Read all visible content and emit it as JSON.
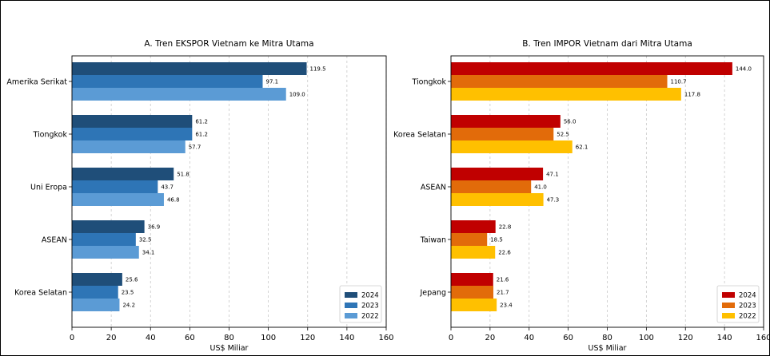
{
  "chart_data": [
    {
      "type": "bar",
      "orientation": "horizontal",
      "title": "A. Tren EKSPOR Vietnam ke Mitra Utama",
      "xlabel": "US$ Miliar",
      "xlim": [
        0,
        160
      ],
      "xticks": [
        "0",
        "20",
        "40",
        "60",
        "80",
        "100",
        "120",
        "140",
        "160"
      ],
      "categories": [
        "Amerika Serikat",
        "Tiongkok",
        "Uni Eropa",
        "ASEAN",
        "Korea Selatan"
      ],
      "series": [
        {
          "name": "2024",
          "color": "#1f4e79",
          "values": [
            119.5,
            61.2,
            51.8,
            36.9,
            25.6
          ]
        },
        {
          "name": "2023",
          "color": "#2e75b6",
          "values": [
            97.1,
            61.2,
            43.7,
            32.5,
            23.5
          ]
        },
        {
          "name": "2022",
          "color": "#5b9bd5",
          "values": [
            109.0,
            57.7,
            46.8,
            34.1,
            24.2
          ]
        }
      ],
      "grid": "vertical",
      "legend_position": "bottom-right"
    },
    {
      "type": "bar",
      "orientation": "horizontal",
      "title": "B. Tren IMPOR Vietnam dari Mitra Utama",
      "xlabel": "US$ Miliar",
      "xlim": [
        0,
        160
      ],
      "xticks": [
        "0",
        "20",
        "40",
        "60",
        "80",
        "100",
        "120",
        "140",
        "160"
      ],
      "categories": [
        "Tiongkok",
        "Korea Selatan",
        "ASEAN",
        "Taiwan",
        "Jepang"
      ],
      "series": [
        {
          "name": "2024",
          "color": "#c00000",
          "values": [
            144.0,
            56.0,
            47.1,
            22.8,
            21.6
          ]
        },
        {
          "name": "2023",
          "color": "#e26b0a",
          "values": [
            110.7,
            52.5,
            41.0,
            18.5,
            21.7
          ]
        },
        {
          "name": "2022",
          "color": "#ffc000",
          "values": [
            117.8,
            62.1,
            47.3,
            22.6,
            23.4
          ]
        }
      ],
      "grid": "vertical",
      "legend_position": "bottom-right"
    }
  ]
}
